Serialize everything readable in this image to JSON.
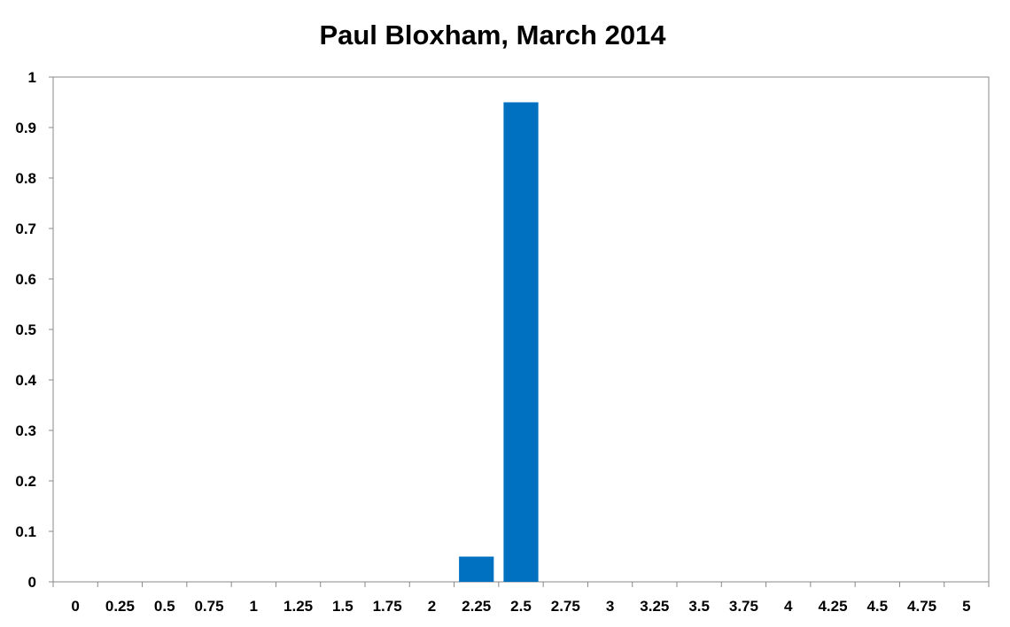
{
  "chart_data": {
    "type": "bar",
    "title": "Paul Bloxham, March 2014",
    "xlabel": "",
    "ylabel": "",
    "categories": [
      "0",
      "0.25",
      "0.5",
      "0.75",
      "1",
      "1.25",
      "1.5",
      "1.75",
      "2",
      "2.25",
      "2.5",
      "2.75",
      "3",
      "3.25",
      "3.5",
      "3.75",
      "4",
      "4.25",
      "4.5",
      "4.75",
      "5"
    ],
    "values": [
      0,
      0,
      0,
      0,
      0,
      0,
      0,
      0,
      0,
      0.05,
      0.95,
      0,
      0,
      0,
      0,
      0,
      0,
      0,
      0,
      0,
      0
    ],
    "ylim": [
      0,
      1
    ],
    "yticks": [
      "0",
      "0.1",
      "0.2",
      "0.3",
      "0.4",
      "0.5",
      "0.6",
      "0.7",
      "0.8",
      "0.9",
      "1"
    ],
    "grid": false,
    "legend": "none",
    "bar_color": "#0070C0"
  }
}
